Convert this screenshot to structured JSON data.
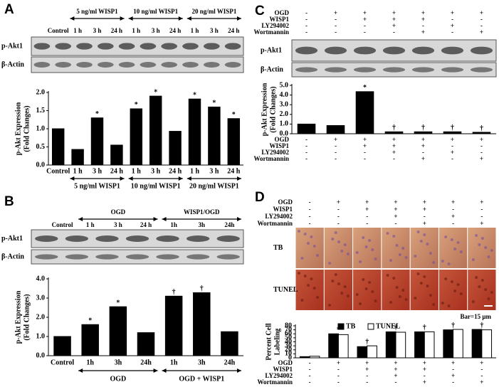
{
  "figure": {
    "panel_labels": [
      "A",
      "B",
      "C",
      "D"
    ]
  },
  "blots": [
    {
      "groups": [
        "5 ng/ml WISP1",
        "10 ng/ml WISP1",
        "20 ng/ml WISP1"
      ],
      "lanes": [
        "Control",
        "1 h",
        "3 h",
        "24 h",
        "1 h",
        "3 h",
        "24 h",
        "1 h",
        "3 h",
        "24 h"
      ],
      "rows": [
        "p-Akt1",
        "β-Actin"
      ]
    },
    {
      "groups": [
        "OGD",
        "WISP1/OGD"
      ],
      "lanes": [
        "Control",
        "1 h",
        "3 h",
        "24 h",
        "1h",
        "3h",
        "24h"
      ],
      "rows": [
        "p-Akt1",
        "β-Actin"
      ]
    },
    {
      "rows": [
        "p-Akt1",
        "β-Actin"
      ]
    }
  ],
  "images": {
    "rows": [
      "TB",
      "TUNEL"
    ],
    "scale_bar": "Bar=15 μm"
  },
  "chart_data": [
    {
      "type": "bar",
      "ylabel": [
        "p-Akt Expression",
        "(Fold Changes)"
      ],
      "color": "#000000",
      "categories": [
        "Control",
        "1 h",
        "3 h",
        "24 h",
        "1 h",
        "3 h",
        "24 h",
        "1 h",
        "3 h",
        "24 h"
      ],
      "values": [
        1.0,
        0.43,
        1.3,
        0.55,
        1.55,
        1.9,
        0.93,
        1.82,
        1.6,
        1.28
      ],
      "value_marks": [
        null,
        null,
        "*",
        null,
        "*",
        "*",
        null,
        "*",
        "*",
        "*"
      ],
      "groups": [
        "5 ng/ml WISP1",
        "10 ng/ml WISP1",
        "20 ng/ml WISP1"
      ],
      "ylim": [
        0,
        2.0
      ],
      "yticks": [
        {
          "value": 0,
          "label": "0.0"
        },
        {
          "value": 0.5,
          "label": "0.5"
        },
        {
          "value": 1.0,
          "label": "1.0"
        },
        {
          "value": 1.5,
          "label": "1.5"
        },
        {
          "value": 2.0,
          "label": "2.0"
        }
      ]
    },
    {
      "type": "bar",
      "ylabel": [
        "p-Akt Expression",
        "(Fold Changes)"
      ],
      "color": "#000000",
      "categories": [
        "Control",
        "1h",
        "3h",
        "24h",
        "1h",
        "3h",
        "24h"
      ],
      "values": [
        1.0,
        1.62,
        2.55,
        1.2,
        3.1,
        3.28,
        1.25
      ],
      "value_marks": [
        null,
        "*",
        "*",
        null,
        "†",
        "†",
        null
      ],
      "groups": [
        "OGD",
        "OGD + WISP1"
      ],
      "ylim": [
        0,
        4.0
      ],
      "yticks": [
        {
          "value": 0,
          "label": "0.0"
        },
        {
          "value": 1,
          "label": "1.0"
        },
        {
          "value": 2,
          "label": "2.0"
        },
        {
          "value": 3,
          "label": "3.0"
        },
        {
          "value": 4,
          "label": "4.0"
        }
      ]
    },
    {
      "type": "bar",
      "ylabel": [
        "p-Akt Expression",
        "(Fold Changes)"
      ],
      "color": "#000000",
      "values": [
        1.0,
        0.85,
        4.35,
        0.2,
        0.2,
        0.2,
        0.15
      ],
      "value_marks": [
        null,
        null,
        "*",
        "†",
        "†",
        "†",
        "†"
      ],
      "conditions": [
        {
          "name": "OGD",
          "signs": [
            "-",
            "+",
            "+",
            "+",
            "+",
            "+",
            "+"
          ]
        },
        {
          "name": "WISP1",
          "signs": [
            "-",
            "-",
            "+",
            "+",
            "+",
            "-",
            "-"
          ]
        },
        {
          "name": "LY294002",
          "signs": [
            "-",
            "-",
            "-",
            "+",
            "-",
            "+",
            "-"
          ]
        },
        {
          "name": "Wortmannin",
          "signs": [
            "-",
            "-",
            "-",
            "-",
            "+",
            "-",
            "+"
          ]
        }
      ],
      "ylim": [
        0,
        5.0
      ],
      "yticks": [
        {
          "value": 0,
          "label": "0.0"
        },
        {
          "value": 1,
          "label": "1.0"
        },
        {
          "value": 2,
          "label": "2.0"
        },
        {
          "value": 3,
          "label": "3.0"
        },
        {
          "value": 4,
          "label": "4.0"
        },
        {
          "value": 5,
          "label": "5.0"
        }
      ]
    },
    {
      "type": "grouped_bar",
      "ylabel": [
        "Percent Cell",
        "Labeling"
      ],
      "series": [
        {
          "name": "TB",
          "color": "#000000",
          "values": [
            3,
            60,
            28,
            65,
            65,
            70,
            71
          ]
        },
        {
          "name": "TUNEL",
          "color": "#ffffff",
          "values": [
            4,
            58,
            30,
            64,
            65,
            71,
            70
          ]
        }
      ],
      "value_marks": [
        null,
        "*",
        "†",
        "†",
        "†",
        "†",
        "†"
      ],
      "conditions": [
        {
          "name": "OGD",
          "signs": [
            "-",
            "+",
            "+",
            "+",
            "+",
            "+",
            "+"
          ]
        },
        {
          "name": "WISP1",
          "signs": [
            "-",
            "-",
            "+",
            "+",
            "+",
            "-",
            "-"
          ]
        },
        {
          "name": "LY294002",
          "signs": [
            "-",
            "-",
            "-",
            "+",
            "-",
            "+",
            "-"
          ]
        },
        {
          "name": "Wortmannin",
          "signs": [
            "-",
            "-",
            "-",
            "-",
            "+",
            "-",
            "+"
          ]
        }
      ],
      "ylim": [
        0,
        80
      ],
      "yticks": [
        0,
        10,
        20,
        30,
        40,
        50,
        60,
        70,
        80
      ]
    }
  ]
}
